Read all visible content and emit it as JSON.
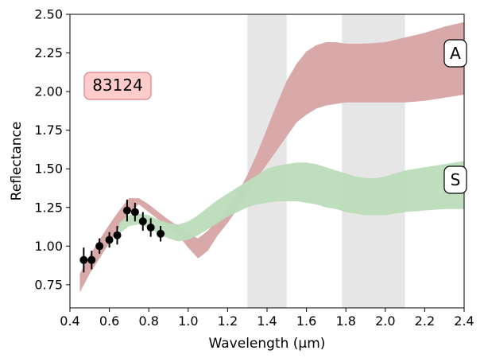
{
  "chart_data": {
    "type": "area",
    "xlabel": "Wavelength (μm)",
    "ylabel": "Reflectance",
    "xlim": [
      0.4,
      2.4
    ],
    "ylim": [
      0.6,
      2.5
    ],
    "xticks": [
      "0.4",
      "0.6",
      "0.8",
      "1.0",
      "1.2",
      "1.4",
      "1.6",
      "1.8",
      "2.0",
      "2.2",
      "2.4"
    ],
    "yticks": [
      "0.75",
      "1.00",
      "1.25",
      "1.50",
      "1.75",
      "2.00",
      "2.25",
      "2.50"
    ],
    "grid": false,
    "object_label": "83124",
    "shaded_regions": [
      {
        "x0": 1.3,
        "x1": 1.5
      },
      {
        "x0": 1.78,
        "x1": 2.1
      }
    ],
    "series": [
      {
        "name": "A",
        "color": "#d9a9a9",
        "x": [
          0.45,
          0.5,
          0.55,
          0.6,
          0.65,
          0.7,
          0.75,
          0.8,
          0.85,
          0.9,
          0.95,
          1.0,
          1.05,
          1.1,
          1.15,
          1.2,
          1.25,
          1.3,
          1.35,
          1.4,
          1.45,
          1.5,
          1.55,
          1.6,
          1.65,
          1.7,
          1.75,
          1.8,
          1.85,
          1.9,
          2.0,
          2.1,
          2.2,
          2.3,
          2.4
        ],
        "lower": [
          0.7,
          0.82,
          0.92,
          1.02,
          1.12,
          1.22,
          1.27,
          1.22,
          1.17,
          1.13,
          1.07,
          0.99,
          0.92,
          0.97,
          1.07,
          1.15,
          1.24,
          1.34,
          1.44,
          1.53,
          1.62,
          1.71,
          1.8,
          1.85,
          1.89,
          1.91,
          1.92,
          1.93,
          1.93,
          1.93,
          1.93,
          1.93,
          1.94,
          1.96,
          1.98
        ],
        "upper": [
          0.82,
          0.94,
          1.04,
          1.14,
          1.23,
          1.31,
          1.31,
          1.27,
          1.22,
          1.17,
          1.13,
          1.08,
          1.05,
          1.1,
          1.17,
          1.25,
          1.34,
          1.46,
          1.6,
          1.76,
          1.92,
          2.07,
          2.18,
          2.26,
          2.3,
          2.32,
          2.32,
          2.31,
          2.31,
          2.31,
          2.32,
          2.35,
          2.38,
          2.42,
          2.45
        ]
      },
      {
        "name": "S",
        "color": "#bcdcba",
        "x": [
          0.65,
          0.7,
          0.75,
          0.8,
          0.85,
          0.9,
          0.95,
          1.0,
          1.05,
          1.1,
          1.15,
          1.2,
          1.25,
          1.3,
          1.35,
          1.4,
          1.45,
          1.5,
          1.55,
          1.6,
          1.65,
          1.7,
          1.75,
          1.8,
          1.85,
          1.9,
          1.95,
          2.0,
          2.05,
          2.1,
          2.2,
          2.3,
          2.4
        ],
        "lower": [
          1.08,
          1.13,
          1.14,
          1.12,
          1.08,
          1.05,
          1.03,
          1.04,
          1.07,
          1.11,
          1.15,
          1.19,
          1.22,
          1.25,
          1.27,
          1.28,
          1.29,
          1.29,
          1.29,
          1.28,
          1.27,
          1.25,
          1.24,
          1.22,
          1.21,
          1.2,
          1.2,
          1.2,
          1.21,
          1.22,
          1.23,
          1.24,
          1.24
        ],
        "upper": [
          1.15,
          1.2,
          1.21,
          1.2,
          1.17,
          1.15,
          1.14,
          1.16,
          1.2,
          1.25,
          1.3,
          1.34,
          1.38,
          1.42,
          1.46,
          1.5,
          1.52,
          1.53,
          1.54,
          1.54,
          1.53,
          1.51,
          1.49,
          1.47,
          1.45,
          1.44,
          1.44,
          1.45,
          1.47,
          1.49,
          1.51,
          1.53,
          1.55
        ]
      }
    ],
    "observations": {
      "x": [
        0.47,
        0.51,
        0.55,
        0.6,
        0.64,
        0.69,
        0.73,
        0.77,
        0.81,
        0.86
      ],
      "y": [
        0.91,
        0.91,
        1.0,
        1.04,
        1.07,
        1.23,
        1.22,
        1.16,
        1.12,
        1.08
      ],
      "yerr": [
        0.08,
        0.06,
        0.05,
        0.05,
        0.06,
        0.07,
        0.06,
        0.06,
        0.06,
        0.05
      ],
      "color": "#000000"
    }
  }
}
